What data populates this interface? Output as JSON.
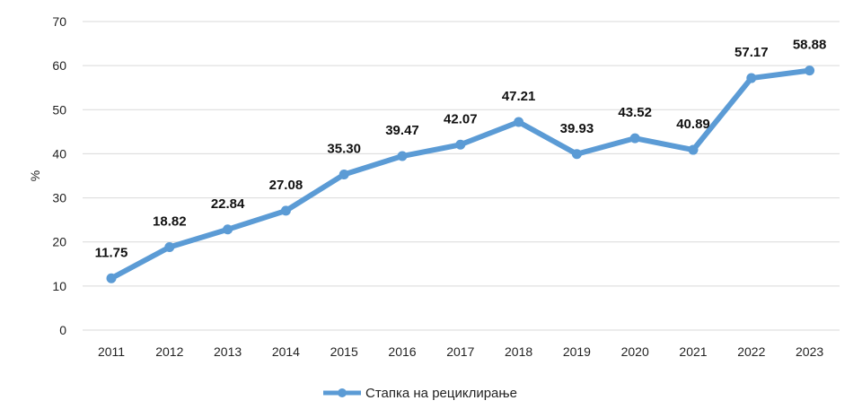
{
  "chart_data": {
    "type": "line",
    "categories": [
      "2011",
      "2012",
      "2013",
      "2014",
      "2015",
      "2016",
      "2017",
      "2018",
      "2019",
      "2020",
      "2021",
      "2022",
      "2023"
    ],
    "series": [
      {
        "name": "Стапка на рециклирање",
        "values": [
          11.75,
          18.82,
          22.84,
          27.08,
          35.3,
          39.47,
          42.07,
          47.21,
          39.93,
          43.52,
          40.89,
          57.17,
          58.88
        ],
        "labels": [
          "11.75",
          "18.82",
          "22.84",
          "27.08",
          "35.30",
          "39.47",
          "42.07",
          "47.21",
          "39.93",
          "43.52",
          "40.89",
          "57.17",
          "58.88"
        ]
      }
    ],
    "ylabel": "%",
    "ylim": [
      0,
      70
    ],
    "yticks": [
      "0",
      "10",
      "20",
      "30",
      "40",
      "50",
      "60",
      "70"
    ],
    "grid": true,
    "legend": "bottom",
    "color": "#5b9bd5"
  }
}
